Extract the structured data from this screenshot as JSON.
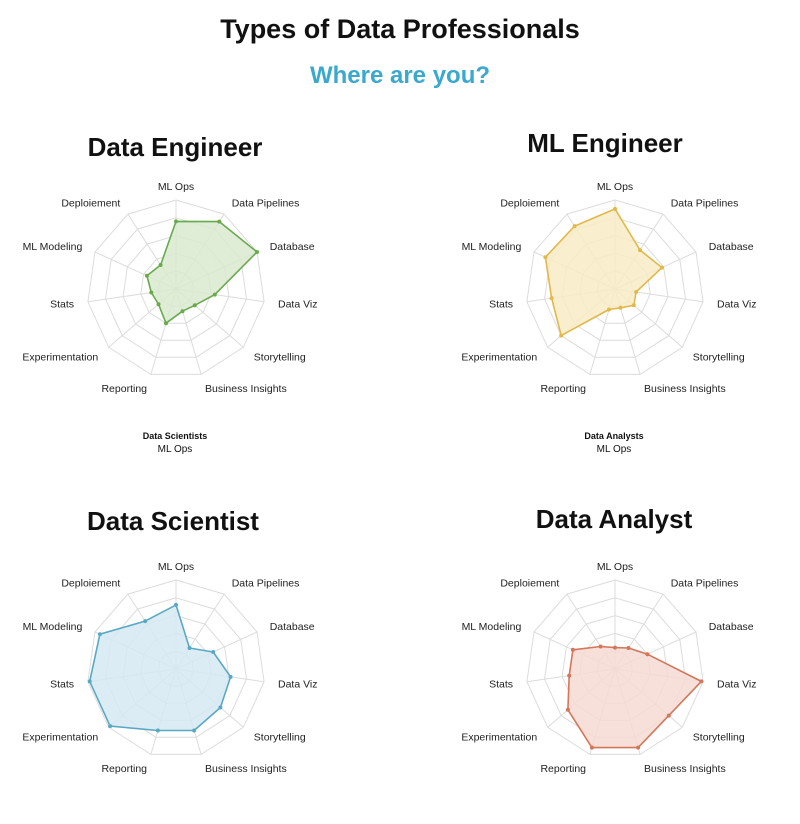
{
  "header": {
    "title": "Types of Data Professionals",
    "subtitle": "Where are you?"
  },
  "axes": [
    "ML Ops",
    "Data Pipelines",
    "Database",
    "Data Viz",
    "Storytelling",
    "Business Insights",
    "Reporting",
    "Experimentation",
    "Stats",
    "ML Modeling",
    "Deploiement"
  ],
  "footnotes": [
    {
      "bold": "Data Scientists",
      "text": "ML Ops"
    },
    {
      "bold": "Data Analysts",
      "text": "ML Ops"
    }
  ],
  "chart_data": [
    {
      "type": "radar",
      "title": "Data Engineer",
      "color": "#6aaa4d",
      "fill": "#d9ead0",
      "rmax": 5,
      "rings": 5,
      "values": [
        3.8,
        4.5,
        5.0,
        2.2,
        1.4,
        1.3,
        2.0,
        1.3,
        1.4,
        1.8,
        1.6
      ]
    },
    {
      "type": "radar",
      "title": "ML Engineer",
      "color": "#e2b84a",
      "fill": "#f8ebc6",
      "rmax": 5,
      "rings": 5,
      "values": [
        4.5,
        2.6,
        2.9,
        1.2,
        1.4,
        1.1,
        1.2,
        4.0,
        3.6,
        4.3,
        4.2
      ]
    },
    {
      "type": "radar",
      "title": "Data Scientist",
      "color": "#5aa9c4",
      "fill": "#d6e9f2",
      "rmax": 5,
      "rings": 5,
      "values": [
        3.6,
        1.4,
        2.3,
        3.1,
        3.3,
        3.6,
        3.6,
        4.9,
        4.9,
        4.7,
        3.2
      ]
    },
    {
      "type": "radar",
      "title": "Data Analyst",
      "color": "#d4765a",
      "fill": "#f6dbd2",
      "rmax": 5,
      "rings": 5,
      "values": [
        1.2,
        1.4,
        2.0,
        4.9,
        4.0,
        4.6,
        4.6,
        3.5,
        2.6,
        2.6,
        1.5
      ]
    }
  ]
}
